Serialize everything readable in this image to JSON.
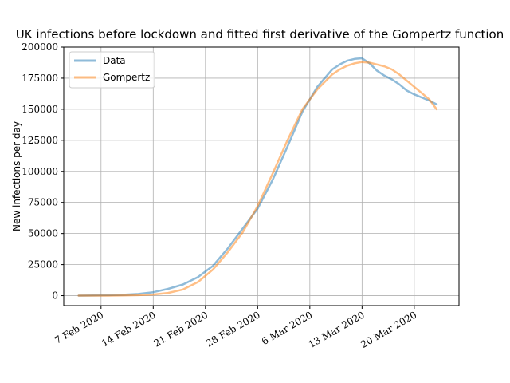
{
  "chart_data": {
    "type": "line",
    "title": "UK infections before lockdown and fitted first derivative of the Gompertz function",
    "xlabel": "",
    "ylabel": "New infections per day",
    "ylim": [
      -8000,
      200000
    ],
    "xlim": [
      "2020-02-02",
      "2020-03-26"
    ],
    "grid": true,
    "legend": "top-left",
    "x_ticks": [
      "7 Feb 2020",
      "14 Feb 2020",
      "21 Feb 2020",
      "28 Feb 2020",
      "6 Mar 2020",
      "13 Mar 2020",
      "20 Mar 2020"
    ],
    "x_tick_dates": [
      "2020-02-07",
      "2020-02-14",
      "2020-02-21",
      "2020-02-28",
      "2020-03-06",
      "2020-03-13",
      "2020-03-20"
    ],
    "y_ticks": [
      0,
      25000,
      50000,
      75000,
      100000,
      125000,
      150000,
      175000,
      200000
    ],
    "x": [
      "2020-02-04",
      "2020-02-06",
      "2020-02-08",
      "2020-02-10",
      "2020-02-12",
      "2020-02-14",
      "2020-02-16",
      "2020-02-18",
      "2020-02-20",
      "2020-02-22",
      "2020-02-24",
      "2020-02-26",
      "2020-02-28",
      "2020-03-01",
      "2020-03-03",
      "2020-03-05",
      "2020-03-07",
      "2020-03-09",
      "2020-03-10",
      "2020-03-11",
      "2020-03-12",
      "2020-03-13",
      "2020-03-14",
      "2020-03-15",
      "2020-03-16",
      "2020-03-17",
      "2020-03-18",
      "2020-03-19",
      "2020-03-20",
      "2020-03-21",
      "2020-03-22",
      "2020-03-23",
      "2020-03-24"
    ],
    "series": [
      {
        "name": "Data",
        "color": "#1f77b4",
        "values": [
          0,
          200,
          400,
          700,
          1400,
          2800,
          5500,
          9000,
          15000,
          24000,
          38000,
          54000,
          70000,
          93000,
          120000,
          148000,
          168000,
          182000,
          186000,
          189000,
          190500,
          191000,
          187000,
          181000,
          177000,
          174000,
          170000,
          165000,
          162000,
          159500,
          157000,
          154000,
          null
        ]
      },
      {
        "name": "Gompertz",
        "color": "#ff7f0e",
        "values": [
          0,
          0,
          50,
          150,
          400,
          900,
          2200,
          5000,
          11000,
          21000,
          35000,
          51000,
          72000,
          98000,
          125000,
          150000,
          166000,
          178000,
          182000,
          185000,
          187000,
          188000,
          187500,
          186000,
          184500,
          182000,
          178000,
          173000,
          168000,
          163000,
          158000,
          150000,
          null
        ]
      }
    ]
  }
}
